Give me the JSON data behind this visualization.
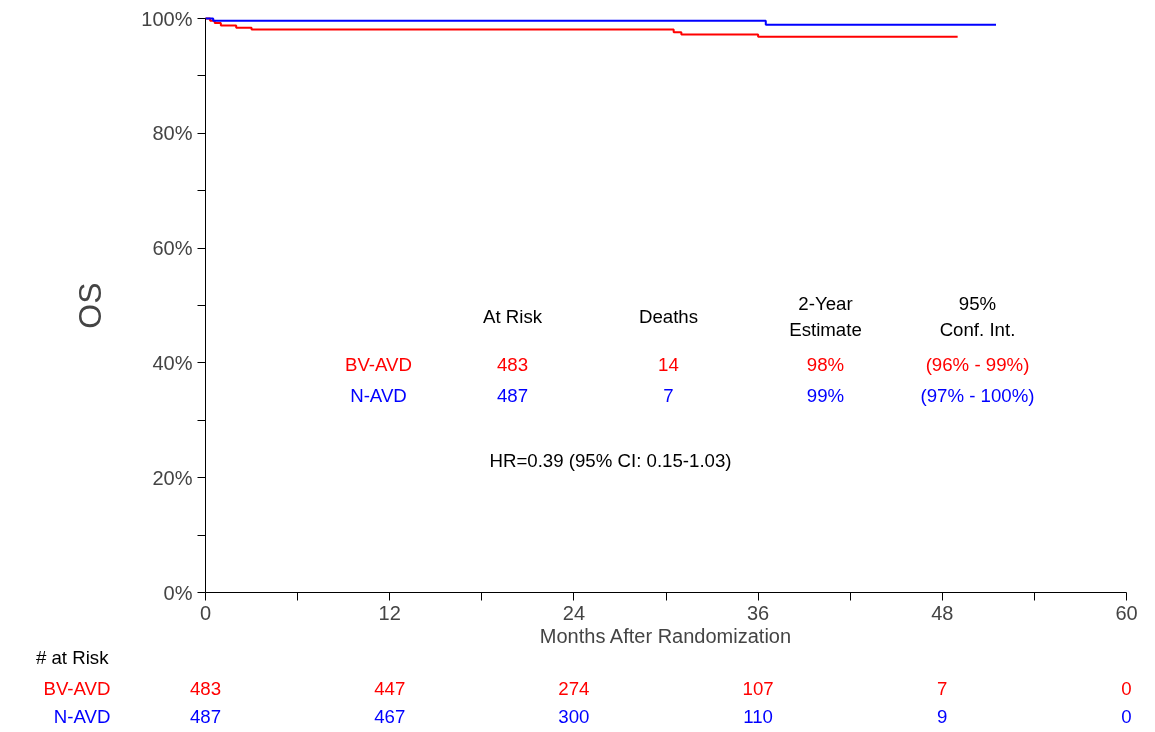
{
  "chart_data": {
    "type": "step",
    "xlabel": "Months After Randomization",
    "ylabel": "OS",
    "xlim": [
      0,
      60
    ],
    "ylim": [
      0,
      100
    ],
    "xticks": [
      0,
      {
        "value": 6,
        "label": null
      },
      12,
      {
        "value": 18,
        "label": null
      },
      24,
      {
        "value": 30,
        "label": null
      },
      36,
      {
        "value": 42,
        "label": null
      },
      48,
      {
        "value": 54,
        "label": null
      },
      60
    ],
    "yticks": [
      {
        "value": 0,
        "label": "0%"
      },
      {
        "value": 10,
        "label": null
      },
      {
        "value": 20,
        "label": "20%"
      },
      {
        "value": 30,
        "label": null
      },
      {
        "value": 40,
        "label": "40%"
      },
      {
        "value": 50,
        "label": null
      },
      {
        "value": 60,
        "label": "60%"
      },
      {
        "value": 70,
        "label": null
      },
      {
        "value": 80,
        "label": "80%"
      },
      {
        "value": 90,
        "label": null
      },
      {
        "value": 100,
        "label": "100%"
      }
    ],
    "grid": false,
    "legend": false,
    "series": [
      {
        "name": "BV-AVD",
        "color": "#ff0000",
        "x": [
          0,
          0.3,
          0.6,
          1,
          2,
          3,
          14,
          30.5,
          31,
          36,
          49
        ],
        "values": [
          100,
          99.6,
          99.2,
          98.8,
          98.4,
          98.1,
          98.1,
          97.6,
          97.2,
          96.8,
          96.8
        ]
      },
      {
        "name": "N-AVD",
        "color": "#0000ff",
        "x": [
          0,
          0.5,
          36,
          36.5,
          51.5
        ],
        "values": [
          100,
          99.6,
          99.6,
          98.9,
          98.9
        ]
      }
    ],
    "annotations": [
      "At Risk",
      "Deaths",
      "2-Year\nEstimate",
      "95%\nConf. Int.",
      "483",
      "14",
      "98%",
      "(96% - 99%)",
      "487",
      "7",
      "99%",
      "(97% - 100%)",
      "HR=0.39 (95% CI: 0.15-1.03)",
      "# at Risk",
      "483",
      "447",
      "274",
      "107",
      "7",
      "0",
      "487",
      "467",
      "300",
      "110",
      "9",
      "0"
    ]
  }
}
